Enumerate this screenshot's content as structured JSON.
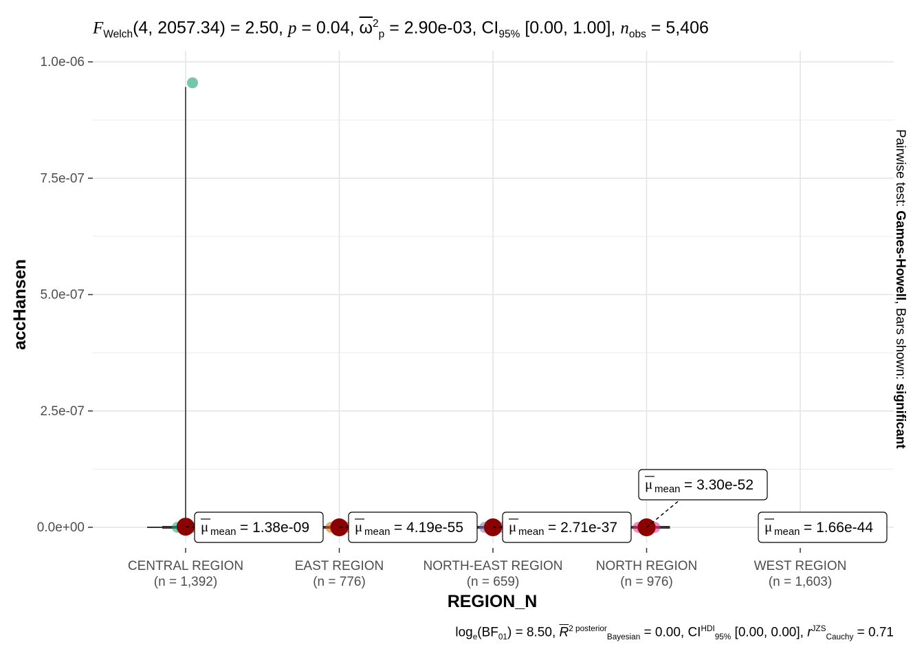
{
  "title_parts": {
    "stat": "F",
    "stat_sub": "Welch",
    "df": "(4, 2057.34)",
    "stat_val": " = 2.50, ",
    "p_lbl": "p",
    "p_val": " = 0.04, ",
    "omega": "ω",
    "omega_sub": "p",
    "omega_sup": "2",
    "omega_val": " = 2.90e-03, CI",
    "ci_sub": "95%",
    "ci_val": " [0.00, 1.00], ",
    "n_lbl": "n",
    "n_sub": "obs",
    "n_val": " = 5,406"
  },
  "subtitle_parts": {
    "log": "log",
    "log_sub": "e",
    "bf": "(BF",
    "bf_sub": "01",
    "bf_val": ") = 8.50, ",
    "r": "R",
    "r_sup": "2 posterior",
    "r_sub": "Bayesian",
    "r_val": " = 0.00, CI",
    "ci_sup": "HDI",
    "ci_sub": "95%",
    "ci_val": " [0.00, 0.00], ",
    "rc": "r",
    "rc_sup": "JZS",
    "rc_sub": "Cauchy",
    "rc_val": " = 0.71"
  },
  "caption_parts": {
    "prefix": "Pairwise test: ",
    "test": "Games-Howell",
    "middle": ", Bars shown: ",
    "bars": "significant"
  },
  "chart_data": {
    "type": "scatter",
    "xlabel": "REGION_N",
    "ylabel": "accHansen",
    "ylim": [
      0,
      1e-06
    ],
    "y_ticks": [
      0,
      2.5e-07,
      5e-07,
      7.5e-07,
      1e-06
    ],
    "y_tick_labels": [
      "0.0e+00",
      "2.5e-07",
      "5.0e-07",
      "7.5e-07",
      "1.0e-06"
    ],
    "grid": true,
    "categories": [
      "CENTRAL REGION",
      "EAST REGION",
      "NORTH-EAST REGION",
      "NORTH REGION",
      "WEST REGION"
    ],
    "category_counts": [
      "(n = 1,392)",
      "(n = 776)",
      "(n = 659)",
      "(n = 976)",
      "(n = 1,603)"
    ],
    "means": [
      1.38e-09,
      4.19e-55,
      2.71e-37,
      3.3e-52,
      1.66e-44
    ],
    "mean_labels": [
      "1.38e-09",
      "4.19e-55",
      "2.71e-37",
      "3.30e-52",
      "1.66e-44"
    ],
    "mean_label_prefix": "μ",
    "mean_label_sub": "mean",
    "outlier": {
      "category": "CENTRAL REGION",
      "value": 9.55e-07
    },
    "point_colors": [
      "#1B9E77",
      "#D95F02",
      "#7570B3",
      "#E7298A",
      "#66A61E"
    ],
    "mean_color": "#8B0000"
  }
}
